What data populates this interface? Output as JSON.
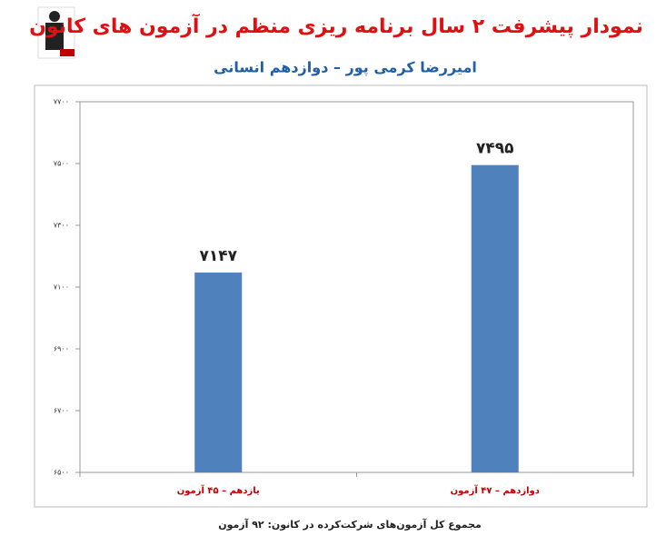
{
  "chart_data": {
    "type": "bar",
    "title": "نمودار پیشرفت ۲ سال برنامه ریزی منظم در آزمون های کانون",
    "subtitle": "امیررضا کرمی پور – دوازدهم انسانی",
    "categories": [
      "یازدهم – ۴۵ آزمون",
      "دوازدهم – ۴۷ آزمون"
    ],
    "values": [
      7147,
      7495
    ],
    "value_labels": [
      "۷۱۴۷",
      "۷۴۹۵"
    ],
    "color": "#4f81bd",
    "ylim": [
      6500,
      7700
    ],
    "yticks": [
      {
        "value": 6500,
        "label": "۶۵۰۰"
      },
      {
        "value": 6700,
        "label": "۶۷۰۰"
      },
      {
        "value": 6900,
        "label": "۶۹۰۰"
      },
      {
        "value": 7100,
        "label": "۷۱۰۰"
      },
      {
        "value": 7300,
        "label": "۷۳۰۰"
      },
      {
        "value": 7500,
        "label": "۷۵۰۰"
      },
      {
        "value": 7700,
        "label": "۷۷۰۰"
      }
    ],
    "grid": false,
    "footnote": "مجموع کل آزمون‌های شرکت‌کرده در کانون: ۹۲ آزمون"
  }
}
